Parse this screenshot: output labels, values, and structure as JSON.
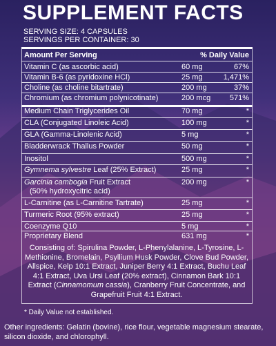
{
  "title": "SUPPLEMENT FACTS",
  "serving_size": "SERVING SIZE: 4 CAPSULES",
  "servings_per_container": "SERVINGS PER CONTAINER: 30",
  "header": {
    "amount": "Amount Per Serving",
    "dv": "% Daily Value"
  },
  "rows": [
    {
      "name": "Vitamin C (as ascorbic acid)",
      "amount": "60 mg",
      "dv": "67%"
    },
    {
      "name": "Vitamin B-6 (as pyridoxine HCl)",
      "amount": "25 mg",
      "dv": "1,471%"
    },
    {
      "name": "Choline (as choline bitartrate)",
      "amount": "200 mg",
      "dv": "37%"
    },
    {
      "name": "Chromium (as chromium polynicotinate)",
      "amount": "200 mcg",
      "dv": "571%"
    },
    {
      "name": "Medium Chain Triglycerides Oil",
      "amount": "70 mg",
      "dv": "*"
    },
    {
      "name": "CLA (Conjugated Linoleic Acid)",
      "amount": "100 mg",
      "dv": "*"
    },
    {
      "name": "GLA (Gamma-Linolenic Acid)",
      "amount": "5 mg",
      "dv": "*"
    },
    {
      "name": "Bladderwrack Thallus Powder",
      "amount": "50 mg",
      "dv": "*"
    },
    {
      "name": "Inositol",
      "amount": "500 mg",
      "dv": "*"
    },
    {
      "name_italic": "Gymnema sylvestre",
      "name": " Leaf (25% Extract)",
      "amount": "25 mg",
      "dv": "*"
    },
    {
      "name_italic": "Garcinia cambogia",
      "name": " Fruit Extract",
      "name2": "(50% hydroxycitric acid)",
      "amount": "200 mg",
      "dv": "*"
    },
    {
      "name": "L-Carnitine (as L-Carnitine Tartrate)",
      "amount": "25 mg",
      "dv": "*"
    },
    {
      "name": "Turmeric Root (95% extract)",
      "amount": "25 mg",
      "dv": "*"
    },
    {
      "name": "Coenzyme Q10",
      "amount": "5 mg",
      "dv": "*"
    },
    {
      "name": "Proprietary Blend",
      "amount": "631 mg",
      "dv": "*"
    }
  ],
  "blend_text_1": "Consisting of: Spirulina Powder, L-Phenylalanine, L-Tyrosine, L-Methionine, Bromelain, Psyllium Husk Powder, Clove Bud Powder, Allspice, Kelp 10:1 Extract, Juniper Berry 4:1 Extract, Buchu Leaf 4:1 Extract, Uva Ursi Leaf (20% extract), Cinnamon Bark 10:1 Extract (",
  "blend_italic": "Cinnamomum cassia",
  "blend_text_2": "), Cranberry Fruit Concentrate, and Grapefruit Fruit 4:1 Extract.",
  "footnote": "* Daily Value not established.",
  "other_ingredients": "Other ingredients: Gelatin (bovine), rice flour, vegetable magnesium stearate, silicon dioxide, and chlorophyll."
}
